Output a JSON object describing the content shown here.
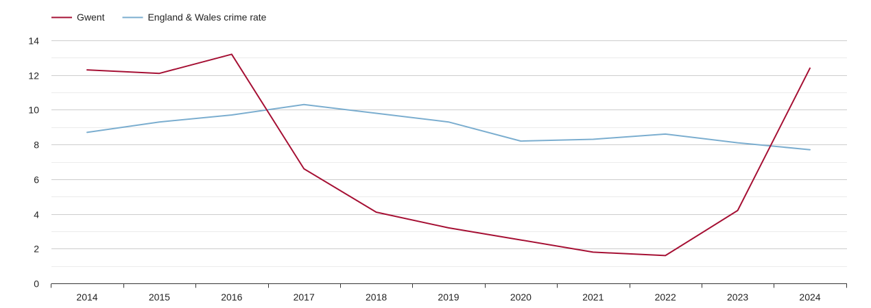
{
  "chart_data": {
    "type": "line",
    "title": "",
    "xlabel": "",
    "ylabel": "",
    "x": [
      "2014",
      "2015",
      "2016",
      "2017",
      "2018",
      "2019",
      "2020",
      "2021",
      "2022",
      "2023",
      "2024"
    ],
    "ylim": [
      0,
      14
    ],
    "yticks": [
      0,
      2,
      4,
      6,
      8,
      10,
      12,
      14
    ],
    "grid": true,
    "legend_position": "top-left",
    "series": [
      {
        "name": "Gwent",
        "color": "#a50f33",
        "values": [
          12.3,
          12.1,
          13.2,
          6.6,
          4.1,
          3.2,
          2.5,
          1.8,
          1.6,
          4.2,
          12.4
        ]
      },
      {
        "name": "England & Wales crime rate",
        "color": "#7aadcf",
        "values": [
          8.7,
          9.3,
          9.7,
          10.3,
          9.8,
          9.3,
          8.2,
          8.3,
          8.6,
          8.1,
          7.7
        ]
      }
    ]
  }
}
